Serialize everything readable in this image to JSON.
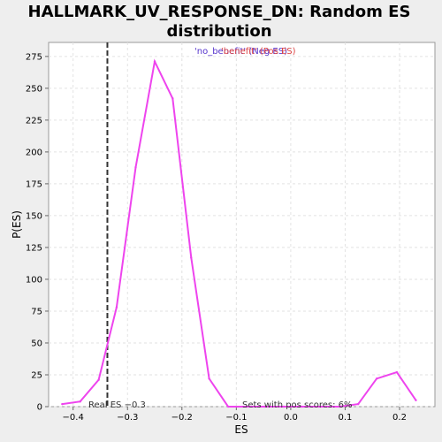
{
  "chart_data": {
    "type": "line",
    "title_line1": "HALLMARK_UV_RESPONSE_DN: Random ES",
    "title_line2": "distribution",
    "xlabel": "ES",
    "ylabel": "P(ES)",
    "xlim": [
      -0.445,
      0.265
    ],
    "ylim": [
      0,
      286
    ],
    "x_ticks": [
      -0.4,
      -0.3,
      -0.2,
      -0.1,
      0.0,
      0.1,
      0.2
    ],
    "x_tick_labels": [
      "−0.4",
      "−0.3",
      "−0.2",
      "−0.1",
      "0.0",
      "0.1",
      "0.2"
    ],
    "y_ticks": [
      0,
      25,
      50,
      75,
      100,
      125,
      150,
      175,
      200,
      225,
      250,
      275
    ],
    "y_tick_labels": [
      "0",
      "25",
      "50",
      "75",
      "100",
      "125",
      "150",
      "175",
      "200",
      "225",
      "250",
      "275"
    ],
    "grid": true,
    "series": [
      {
        "color": "#ee44ee",
        "x": [
          -0.42,
          -0.387,
          -0.353,
          -0.32,
          -0.285,
          -0.25,
          -0.217,
          -0.183,
          -0.15,
          -0.115,
          -0.082,
          -0.048,
          -0.013,
          0.02,
          0.055,
          0.09,
          0.124,
          0.158,
          0.195,
          0.23
        ],
        "y": [
          2,
          4,
          21,
          78,
          188,
          271,
          242,
          117,
          22,
          0,
          0,
          0,
          0,
          0,
          0,
          0,
          2,
          22,
          27,
          5
        ]
      }
    ],
    "real_es": {
      "x": -0.337,
      "color": "#333333",
      "label": "Real ES −0.3"
    },
    "annotations": {
      "top_left": {
        "text": "'no_benefit' (Neg ES)",
        "color": "#5533cc"
      },
      "top_right": {
        "text": "'benefit' (Pos ES)",
        "color": "#dd4444"
      },
      "bottom": {
        "text": "Sets with pos scores: 6%",
        "color": "#333333"
      }
    }
  }
}
